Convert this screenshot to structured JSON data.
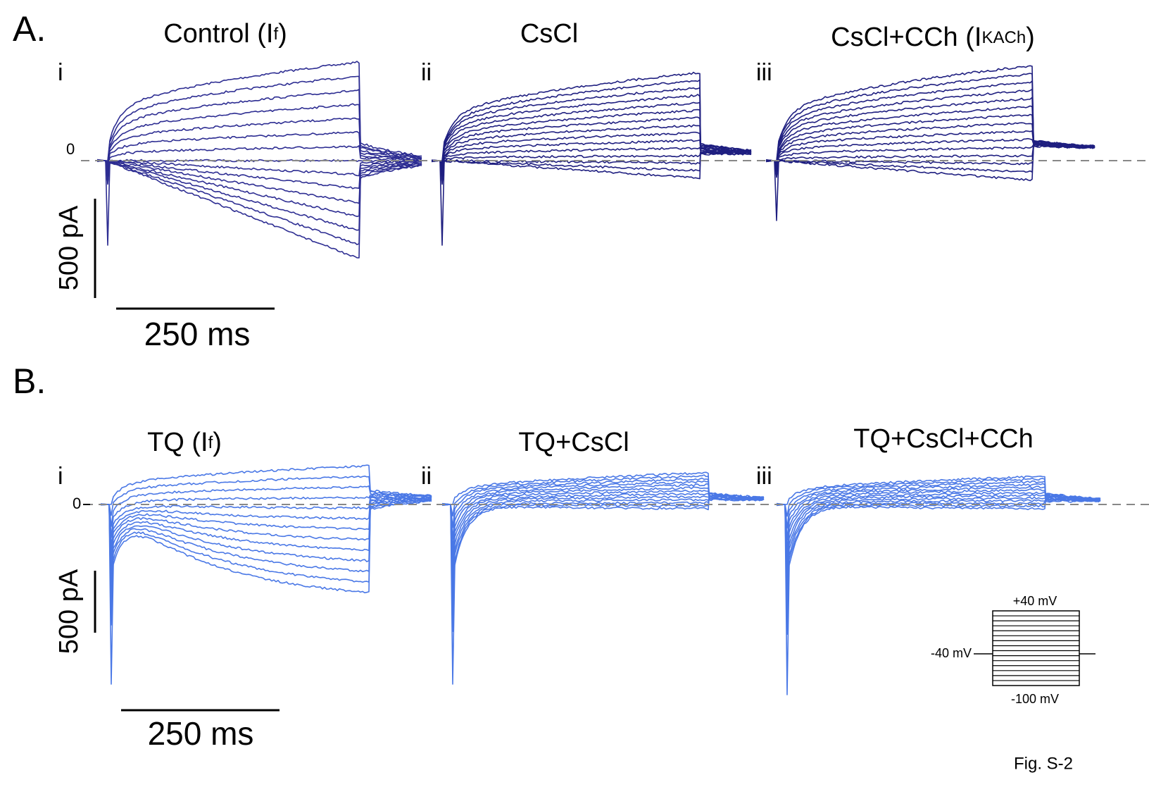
{
  "panel_a": {
    "label": "A.",
    "zero_label": "0",
    "scale_current": "500 pA",
    "scale_time": "250 ms",
    "panels": [
      {
        "numeral": "i",
        "title": {
          "text": "Control (I",
          "sub": "f",
          "end": ")"
        }
      },
      {
        "numeral": "ii",
        "title": {
          "text": "CsCl"
        }
      },
      {
        "numeral": "iii",
        "title": {
          "text": "CsCl+CCh (I",
          "sub": "KACh",
          "end": ")"
        }
      }
    ]
  },
  "panel_b": {
    "label": "B.",
    "zero_label": "0",
    "scale_current": "500 pA",
    "scale_time": "250 ms",
    "panels": [
      {
        "numeral": "i",
        "title": {
          "text": "TQ (I",
          "sub": "f",
          "end": ")"
        }
      },
      {
        "numeral": "ii",
        "title": {
          "text": "TQ+CsCl"
        }
      },
      {
        "numeral": "iii",
        "title": {
          "text": "TQ+CsCl+CCh"
        }
      }
    ]
  },
  "protocol": {
    "high": "+40 mV",
    "hold": "-40 mV",
    "low": "-100 mV"
  },
  "figure_label": "Fig. S-2"
}
